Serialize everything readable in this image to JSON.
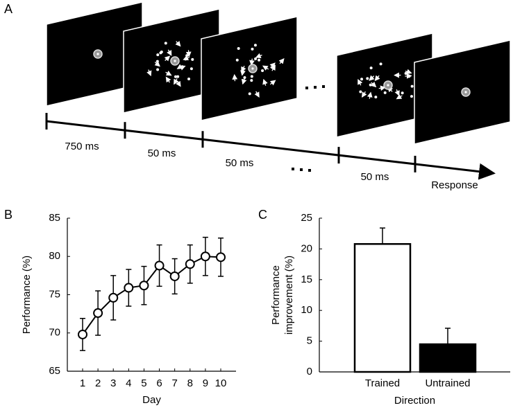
{
  "diagram": {
    "label": "A",
    "intervals": [
      "750 ms",
      "50 ms",
      "50 ms",
      "50 ms"
    ],
    "end_label": "Response"
  },
  "chart_data": [
    {
      "type": "line",
      "panel_label": "B",
      "xlabel": "Day",
      "ylabel": "Performance (%)",
      "categories": [
        "1",
        "2",
        "3",
        "4",
        "5",
        "6",
        "7",
        "8",
        "9",
        "10"
      ],
      "values": [
        69.8,
        72.6,
        74.6,
        75.9,
        76.2,
        78.8,
        77.4,
        79.0,
        80.0,
        79.9
      ],
      "errors": [
        2.1,
        2.9,
        2.9,
        2.4,
        2.5,
        2.7,
        2.3,
        2.5,
        2.5,
        2.5
      ],
      "color": "#000000",
      "marker_fill": "#ffffff",
      "ylim": [
        65,
        85
      ],
      "yticks": [
        65,
        70,
        75,
        80,
        85
      ]
    },
    {
      "type": "bar",
      "panel_label": "C",
      "xlabel": "Direction",
      "ylabel": [
        "Performance",
        "improvement (%)"
      ],
      "categories": [
        "Trained",
        "Untrained"
      ],
      "values": [
        20.8,
        4.5
      ],
      "errors": [
        2.6,
        2.6
      ],
      "colors": [
        "#ffffff",
        "#000000"
      ],
      "edge_color": "#000000",
      "ylim": [
        0,
        25
      ],
      "yticks": [
        0,
        5,
        10,
        15,
        20,
        25
      ]
    }
  ]
}
